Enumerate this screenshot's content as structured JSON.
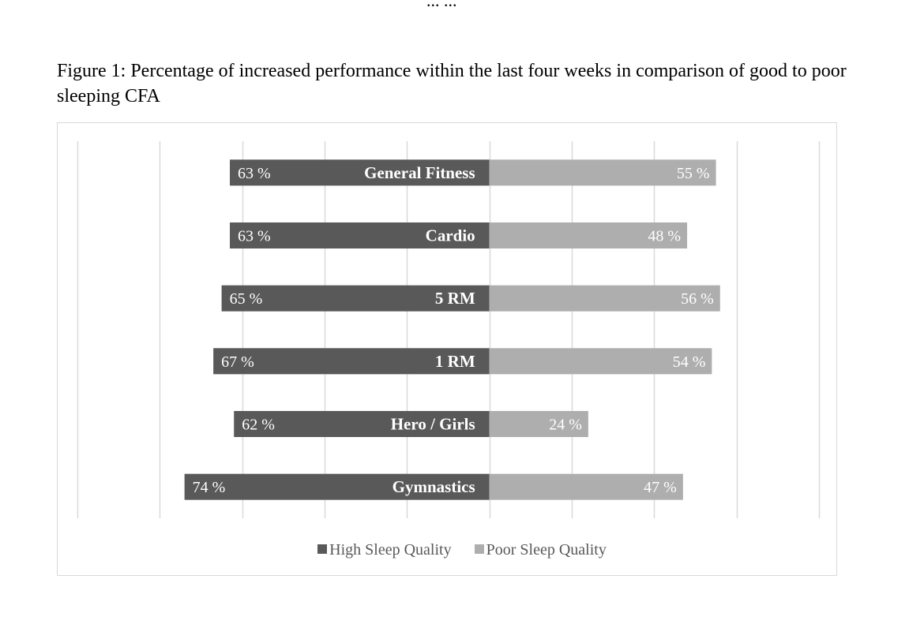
{
  "page": {
    "header_fragment": "... ...",
    "caption": "Figure 1: Percentage of increased performance within the last four weeks in comparison of good to poor sleeping CFA"
  },
  "colors": {
    "high": "#595959",
    "poor": "#aeaeae",
    "grid": "#d9d9d9",
    "label": "#ffffff"
  },
  "chart_data": {
    "type": "bar",
    "orientation": "horizontal-diverging",
    "categories": [
      "General Fitness",
      "Cardio",
      "5 RM",
      "1 RM",
      "Hero / Girls",
      "Gymnastics"
    ],
    "series": [
      {
        "name": "High Sleep Quality",
        "values": [
          63,
          63,
          65,
          67,
          62,
          74
        ]
      },
      {
        "name": "Poor Sleep Quality",
        "values": [
          55,
          48,
          56,
          54,
          24,
          47
        ]
      }
    ],
    "data_labels": {
      "high": [
        "63 %",
        "63 %",
        "65 %",
        "67 %",
        "62 %",
        "74 %"
      ],
      "poor": [
        "55 %",
        "48 %",
        "56 %",
        "54 %",
        "24 %",
        "47 %"
      ]
    },
    "xlim": [
      -100,
      80
    ],
    "grid": true,
    "legend_position": "bottom"
  }
}
